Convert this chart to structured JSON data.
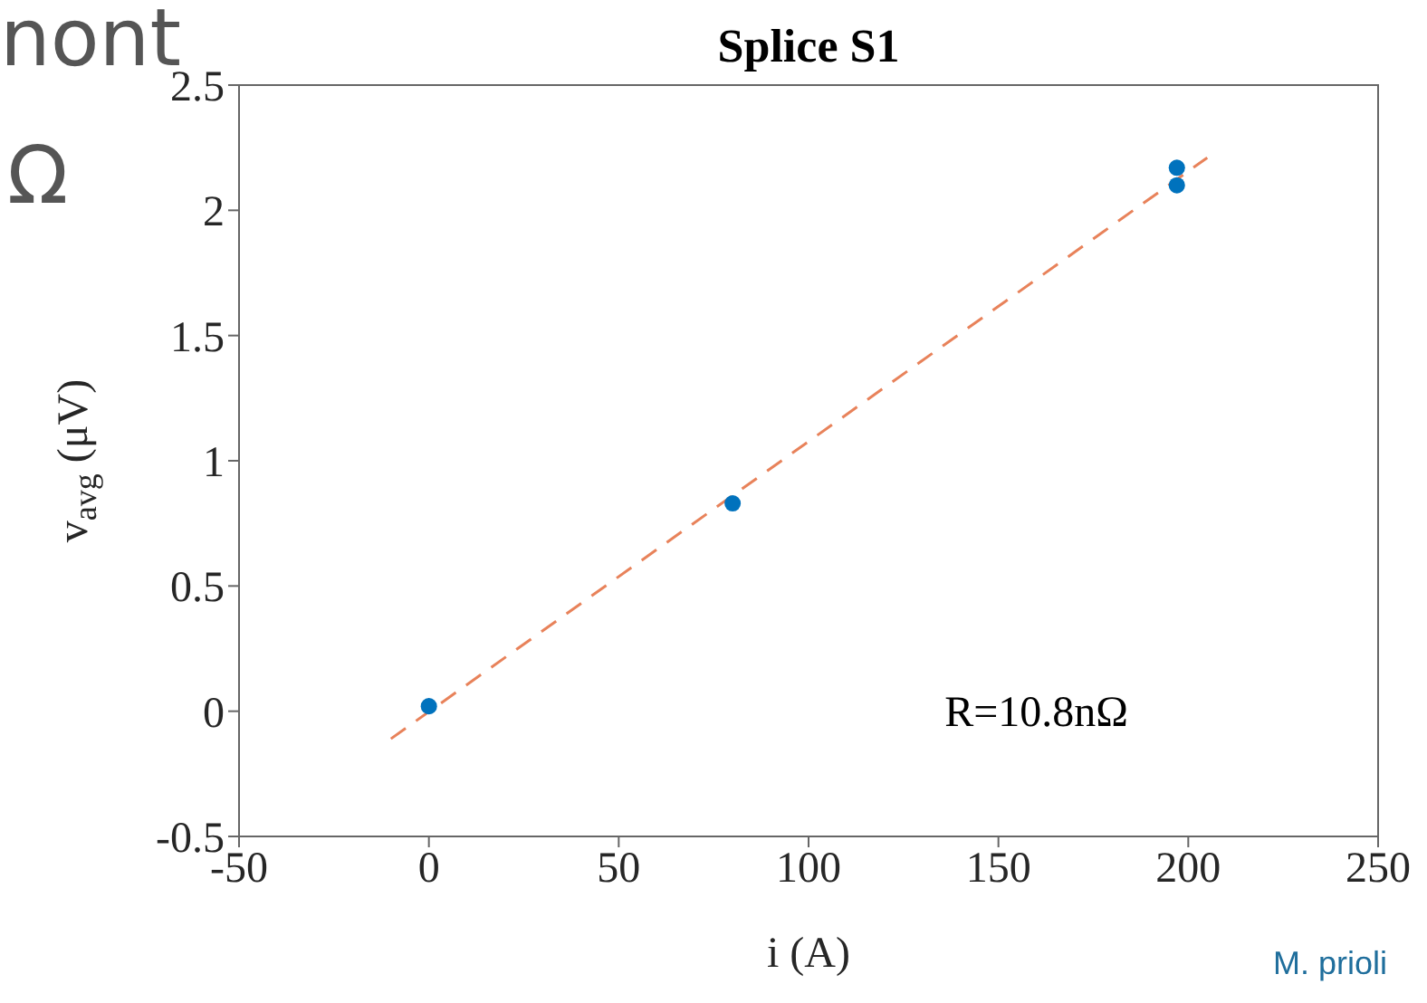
{
  "chart_data": {
    "type": "scatter",
    "title": "Splice S1",
    "xlabel": "i (A)",
    "ylabel": "v$_{avg}$ (μV)",
    "annotations": [
      "R=10.8nΩ",
      "M. prioli",
      "nont",
      "Ω"
    ],
    "series": [
      {
        "color": "#0072bd",
        "marker": "circle",
        "x": [
          0,
          80,
          197,
          197
        ],
        "values": [
          0.02,
          0.83,
          2.17,
          2.1
        ]
      },
      {
        "type": "line",
        "color": "#e8825a",
        "line_style": "dashed",
        "marker": "none",
        "x": [
          -10,
          205
        ],
        "values": [
          -0.11,
          2.21
        ]
      }
    ],
    "grid": false,
    "legend": false,
    "xlim": [
      -50,
      250
    ],
    "xticks": [
      -50,
      0,
      50,
      100,
      150,
      200,
      250
    ],
    "ylim": [
      -0.5,
      2.5
    ],
    "yticks": [
      -0.5,
      0,
      0.5,
      1,
      1.5,
      2,
      2.5
    ]
  }
}
